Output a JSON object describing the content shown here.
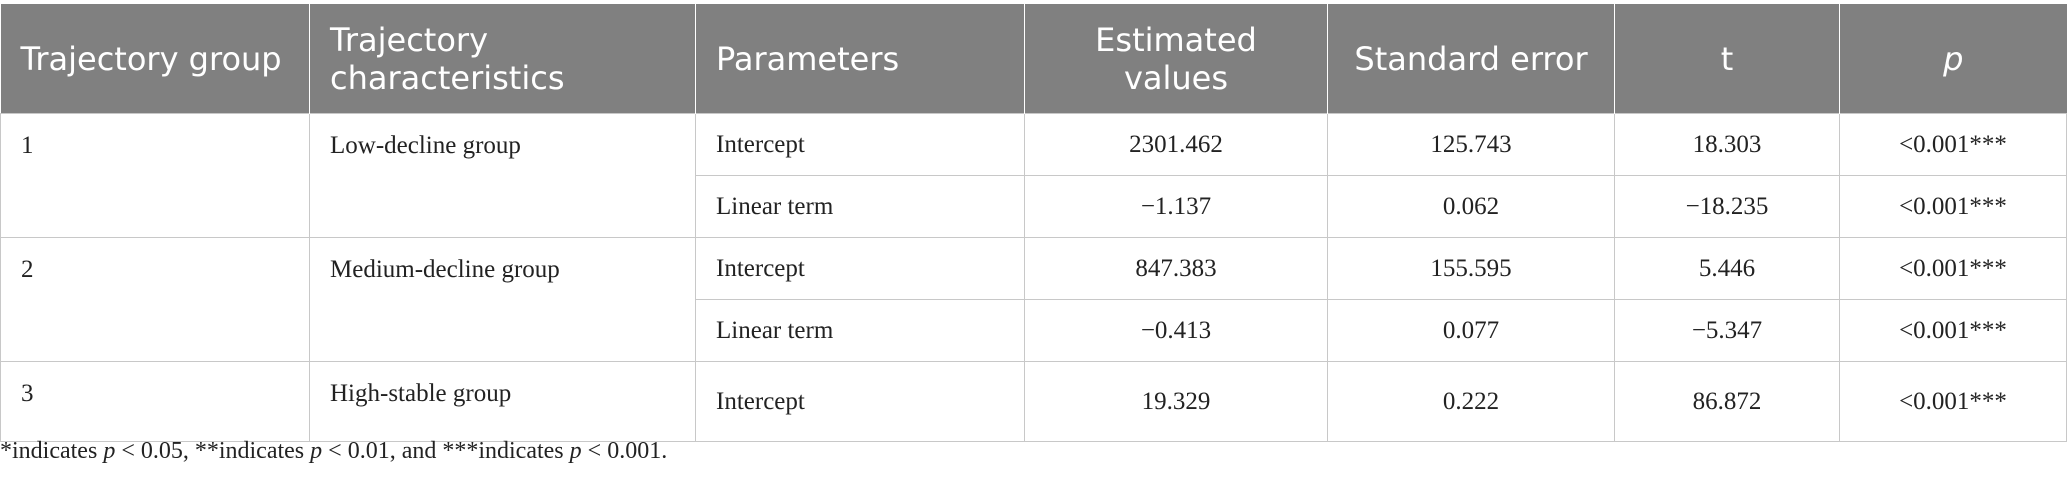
{
  "header": {
    "columns": [
      "Trajectory group",
      "Trajectory characteristics",
      "Parameters",
      "Estimated values",
      "Standard error",
      "t",
      "p"
    ]
  },
  "table": {
    "groups": [
      {
        "group": "1",
        "characteristics": "Low-decline group",
        "rows": [
          [
            "Intercept",
            "2301.462",
            "125.743",
            "18.303",
            "<0.001***"
          ],
          [
            "Linear term",
            "−1.137",
            "0.062",
            "−18.235",
            "<0.001***"
          ]
        ]
      },
      {
        "group": "2",
        "characteristics": "Medium-decline group",
        "rows": [
          [
            "Intercept",
            "847.383",
            "155.595",
            "5.446",
            "<0.001***"
          ],
          [
            "Linear term",
            "−0.413",
            "0.077",
            "−5.347",
            "<0.001***"
          ]
        ]
      },
      {
        "group": "3",
        "characteristics": "High-stable group",
        "rows": [
          [
            "Intercept",
            "19.329",
            "0.222",
            "86.872",
            "<0.001***"
          ]
        ]
      }
    ]
  },
  "footnote": [
    "*indicates ",
    "p",
    " < 0.05, **indicates ",
    "p",
    " < 0.01, and ***indicates ",
    "p",
    " < 0.001."
  ]
}
